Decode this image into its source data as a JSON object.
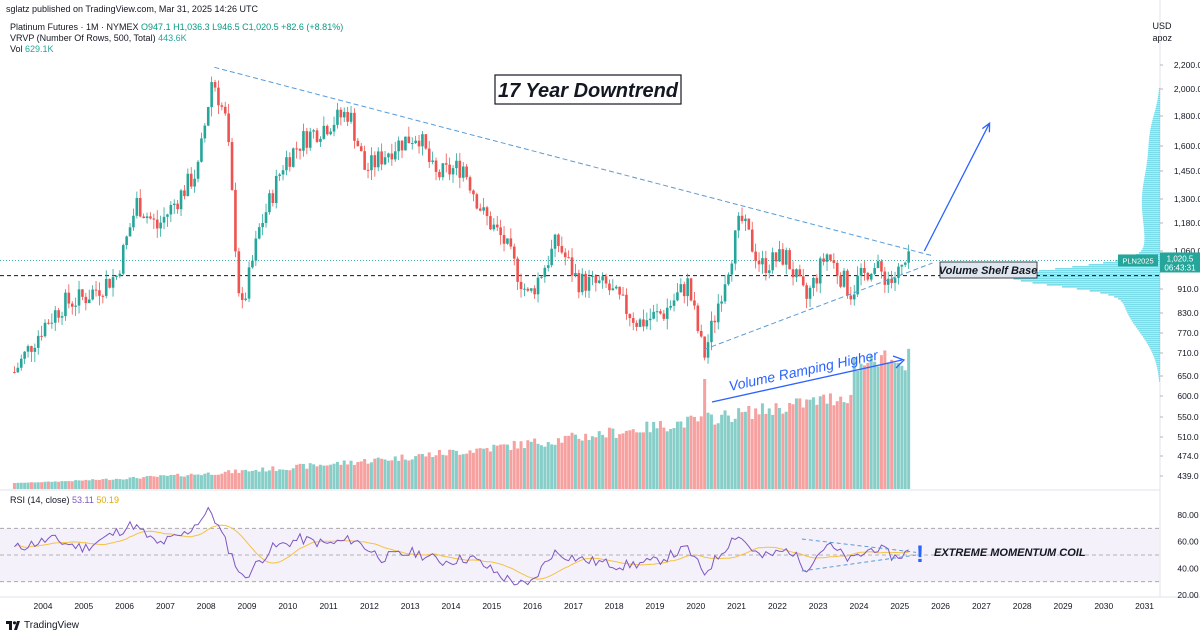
{
  "header": {
    "publisher": "sglatz published on TradingView.com, Mar 31, 2025 14:26 UTC",
    "legend1_name": "Platinum Futures · 1M · NYMEX",
    "legend1_values": "O947.1  H1,036.3  L946.5  C1,020.5  +82.6 (+8.81%)",
    "legend2_name": "VRVP (Number Of Rows, 500, Total)",
    "legend2_value": "443.6K",
    "legend3_name": "Vol",
    "legend3_value": "629.1K",
    "currency": "USD",
    "scale_mode": "apoz"
  },
  "rsi_legend": {
    "name": "RSI (14, close)",
    "rsi": "53.11",
    "ma": "50.19"
  },
  "footer": {
    "brand": "TradingView"
  },
  "colors": {
    "up": "#26a69a",
    "down": "#ef5350",
    "trend": "#5b9bd5",
    "rsi": "#7e57c2",
    "rsi_ma": "#f5c242",
    "price_tag": "#26a69a",
    "annotation_arrow": "#2962ff",
    "volume_profile": "#4dd0e1"
  },
  "annotations": {
    "title_box": "17 Year Downtrend",
    "volume_shelf": "Volume Shelf Base",
    "volume_ramp": "Volume Ramping Higher",
    "momentum_coil": "EXTREME MOMENTUM COIL",
    "exclamation": "!"
  },
  "price_tag": {
    "symbol": "PLN2025",
    "price": "1,020.5",
    "countdown": "06:43:31"
  },
  "chart_data": {
    "type": "line",
    "instrument": "Platinum Futures 1M",
    "x_ticks": [
      "2004",
      "2005",
      "2006",
      "2007",
      "2008",
      "2009",
      "2010",
      "2011",
      "2012",
      "2013",
      "2014",
      "2015",
      "2016",
      "2017",
      "2018",
      "2019",
      "2020",
      "2021",
      "2022",
      "2023",
      "2024",
      "2025",
      "2026",
      "2027",
      "2028",
      "2029",
      "2030",
      "2031"
    ],
    "y_ticks": [
      "2,200.0",
      "2,000.0",
      "1,800.0",
      "1,600.0",
      "1,450.0",
      "1,300.0",
      "1,180.0",
      "1,060.0",
      "910.0",
      "830.0",
      "770.0",
      "710.0",
      "650.0",
      "600.0",
      "550.0",
      "510.0",
      "474.0",
      "439.0"
    ],
    "y_scale": "log",
    "rsi_ticks": [
      "80.00",
      "60.00",
      "40.00",
      "20.00"
    ],
    "price_anchor_points": [
      {
        "x": 2003.3,
        "y": 660
      },
      {
        "x": 2004.0,
        "y": 790
      },
      {
        "x": 2004.5,
        "y": 860
      },
      {
        "x": 2005.0,
        "y": 880
      },
      {
        "x": 2005.8,
        "y": 960
      },
      {
        "x": 2006.3,
        "y": 1280
      },
      {
        "x": 2006.8,
        "y": 1160
      },
      {
        "x": 2007.3,
        "y": 1300
      },
      {
        "x": 2007.8,
        "y": 1460
      },
      {
        "x": 2008.15,
        "y": 2100
      },
      {
        "x": 2008.5,
        "y": 1750
      },
      {
        "x": 2008.85,
        "y": 820
      },
      {
        "x": 2009.3,
        "y": 1150
      },
      {
        "x": 2009.9,
        "y": 1500
      },
      {
        "x": 2010.4,
        "y": 1650
      },
      {
        "x": 2010.9,
        "y": 1730
      },
      {
        "x": 2011.5,
        "y": 1830
      },
      {
        "x": 2011.9,
        "y": 1450
      },
      {
        "x": 2012.6,
        "y": 1600
      },
      {
        "x": 2013.2,
        "y": 1680
      },
      {
        "x": 2013.6,
        "y": 1420
      },
      {
        "x": 2014.3,
        "y": 1480
      },
      {
        "x": 2014.8,
        "y": 1220
      },
      {
        "x": 2015.3,
        "y": 1100
      },
      {
        "x": 2015.9,
        "y": 880
      },
      {
        "x": 2016.6,
        "y": 1100
      },
      {
        "x": 2017.1,
        "y": 940
      },
      {
        "x": 2017.8,
        "y": 920
      },
      {
        "x": 2018.6,
        "y": 800
      },
      {
        "x": 2019.2,
        "y": 830
      },
      {
        "x": 2019.8,
        "y": 930
      },
      {
        "x": 2020.2,
        "y": 700
      },
      {
        "x": 2020.6,
        "y": 890
      },
      {
        "x": 2021.1,
        "y": 1200
      },
      {
        "x": 2021.6,
        "y": 1000
      },
      {
        "x": 2022.2,
        "y": 1040
      },
      {
        "x": 2022.7,
        "y": 870
      },
      {
        "x": 2023.2,
        "y": 1050
      },
      {
        "x": 2023.8,
        "y": 900
      },
      {
        "x": 2024.3,
        "y": 1000
      },
      {
        "x": 2024.8,
        "y": 940
      },
      {
        "x": 2025.25,
        "y": 1020.5
      }
    ],
    "trendlines": [
      {
        "name": "Downtrend",
        "from": {
          "x": 2008.2,
          "y": 2180
        },
        "to": {
          "x": 2025.8,
          "y": 1040
        }
      },
      {
        "name": "Uptrend",
        "from": {
          "x": 2020.2,
          "y": 720
        },
        "to": {
          "x": 2025.8,
          "y": 1010
        }
      }
    ],
    "horizontal_levels": [
      960,
      1020.5
    ],
    "projection": {
      "from": {
        "x": 2025.6,
        "y": 1060
      },
      "to": {
        "x": 2027.2,
        "y": 1750
      }
    },
    "rsi_points": [
      {
        "x": 2003.3,
        "y": 55
      },
      {
        "x": 2004.2,
        "y": 62
      },
      {
        "x": 2005.0,
        "y": 55
      },
      {
        "x": 2006.2,
        "y": 73
      },
      {
        "x": 2006.8,
        "y": 58
      },
      {
        "x": 2007.5,
        "y": 66
      },
      {
        "x": 2008.1,
        "y": 84
      },
      {
        "x": 2008.9,
        "y": 32
      },
      {
        "x": 2009.6,
        "y": 55
      },
      {
        "x": 2010.3,
        "y": 62
      },
      {
        "x": 2011.0,
        "y": 58
      },
      {
        "x": 2011.6,
        "y": 62
      },
      {
        "x": 2012.3,
        "y": 48
      },
      {
        "x": 2013.1,
        "y": 52
      },
      {
        "x": 2013.8,
        "y": 45
      },
      {
        "x": 2014.5,
        "y": 48
      },
      {
        "x": 2015.3,
        "y": 33
      },
      {
        "x": 2015.9,
        "y": 26
      },
      {
        "x": 2016.5,
        "y": 52
      },
      {
        "x": 2017.3,
        "y": 46
      },
      {
        "x": 2018.2,
        "y": 42
      },
      {
        "x": 2019.0,
        "y": 45
      },
      {
        "x": 2019.8,
        "y": 55
      },
      {
        "x": 2020.2,
        "y": 36
      },
      {
        "x": 2021.0,
        "y": 66
      },
      {
        "x": 2021.6,
        "y": 48
      },
      {
        "x": 2022.3,
        "y": 54
      },
      {
        "x": 2022.7,
        "y": 40
      },
      {
        "x": 2023.2,
        "y": 58
      },
      {
        "x": 2023.8,
        "y": 46
      },
      {
        "x": 2024.4,
        "y": 56
      },
      {
        "x": 2024.9,
        "y": 48
      },
      {
        "x": 2025.25,
        "y": 53.11
      }
    ]
  }
}
